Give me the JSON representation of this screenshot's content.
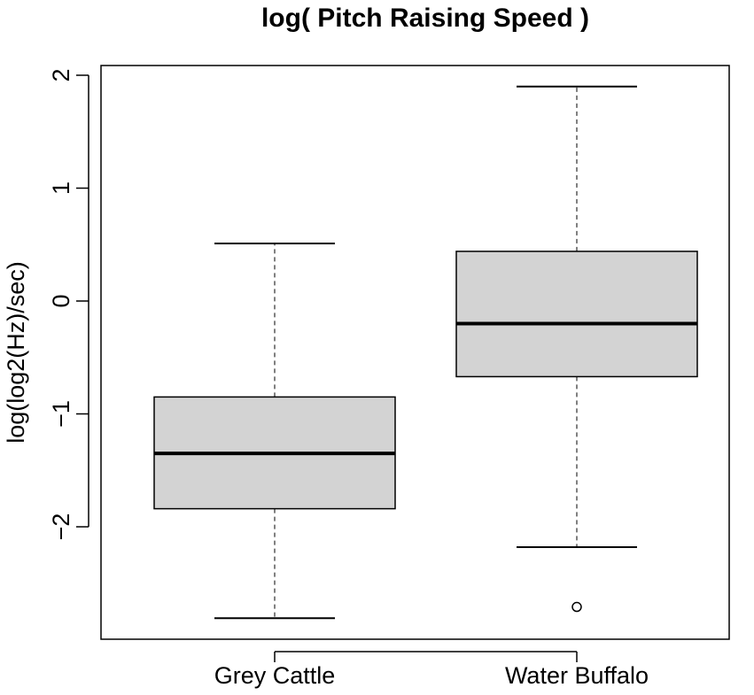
{
  "chart_data": {
    "type": "boxplot",
    "title": "log( Pitch Raising Speed )",
    "xlabel": "",
    "ylabel": "log(log2(Hz)/sec)",
    "ylim": [
      -2.9,
      2.1
    ],
    "yticks": [
      -2,
      -1,
      0,
      1,
      2
    ],
    "ytick_labels": [
      "−2",
      "−1",
      "0",
      "1",
      "2"
    ],
    "grid": false,
    "categories": [
      "Grey Cattle",
      "Water Buffalo"
    ],
    "box_color": "#d3d3d3",
    "boxes": [
      {
        "name": "Grey Cattle",
        "whisker_low": -2.81,
        "q1": -1.84,
        "median": -1.35,
        "q3": -0.85,
        "whisker_high": 0.51,
        "outliers": []
      },
      {
        "name": "Water Buffalo",
        "whisker_low": -2.18,
        "q1": -0.67,
        "median": -0.2,
        "q3": 0.44,
        "whisker_high": 1.9,
        "outliers": [
          -2.71
        ]
      }
    ]
  }
}
